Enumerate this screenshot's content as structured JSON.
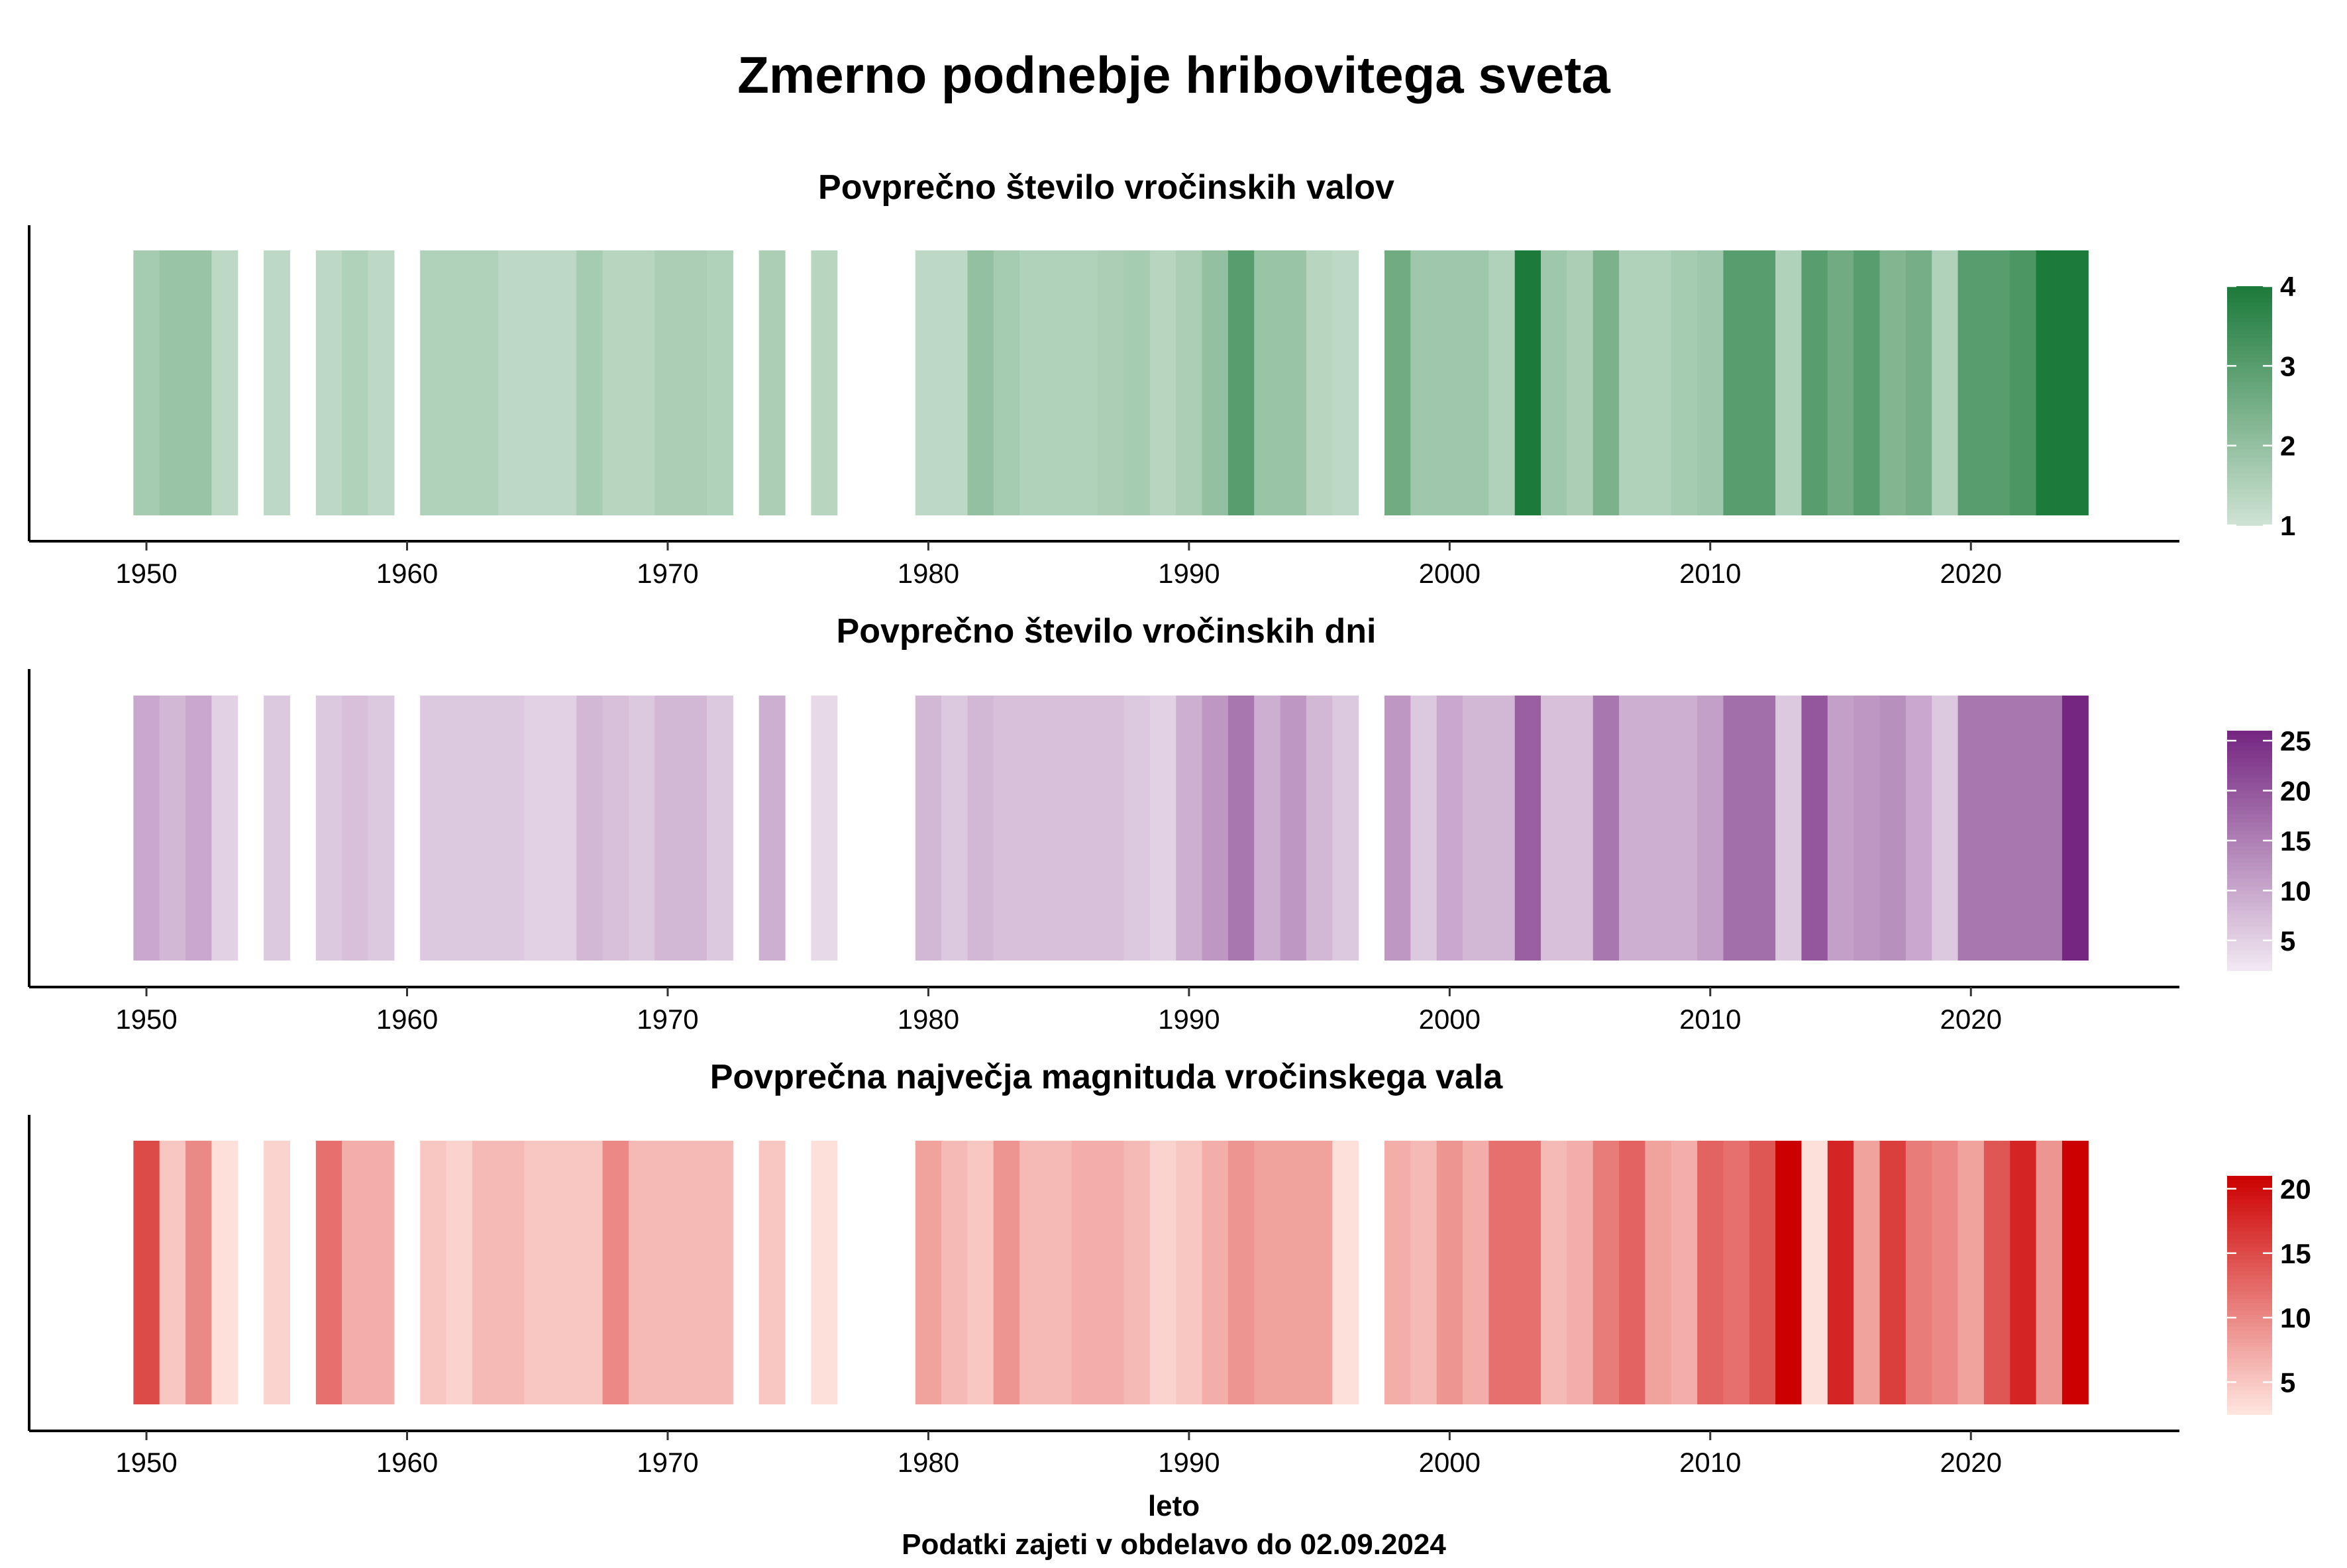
{
  "title": "Zmerno podnebje hribovitega sveta",
  "xlabel": "leto",
  "caption": "Podatki zajeti v obdelavo do 02.09.2024",
  "chart_data": [
    {
      "type": "heatmap",
      "title": "Povprečno število vročinskih valov",
      "xlabel": "leto",
      "xlim": [
        1945.5,
        2028
      ],
      "x_ticks": [
        "1950",
        "1960",
        "1970",
        "1980",
        "1990",
        "2000",
        "2010",
        "2020"
      ],
      "color_scale": {
        "min": 1,
        "max": 4,
        "low_color": "#cfe3d4",
        "high_color": "#1c7a3a"
      },
      "legend_ticks": [
        "1",
        "2",
        "3",
        "4"
      ],
      "legend_position": "right",
      "years": [
        1950,
        1951,
        1952,
        1953,
        1955,
        1957,
        1958,
        1959,
        1961,
        1962,
        1963,
        1964,
        1965,
        1966,
        1967,
        1968,
        1969,
        1970,
        1971,
        1972,
        1974,
        1976,
        1980,
        1981,
        1982,
        1983,
        1984,
        1985,
        1986,
        1987,
        1988,
        1989,
        1990,
        1991,
        1992,
        1993,
        1994,
        1995,
        1996,
        1998,
        1999,
        2000,
        2001,
        2002,
        2003,
        2004,
        2005,
        2006,
        2007,
        2008,
        2009,
        2010,
        2011,
        2012,
        2013,
        2014,
        2015,
        2016,
        2017,
        2018,
        2019,
        2020,
        2021,
        2022,
        2023,
        2024
      ],
      "values": [
        1.7,
        1.9,
        1.9,
        1.3,
        1.3,
        1.3,
        1.5,
        1.3,
        1.5,
        1.5,
        1.5,
        1.3,
        1.3,
        1.3,
        1.7,
        1.4,
        1.4,
        1.6,
        1.6,
        1.5,
        1.6,
        1.4,
        1.3,
        1.3,
        2.0,
        1.7,
        1.5,
        1.5,
        1.5,
        1.6,
        1.7,
        1.4,
        1.6,
        2.0,
        3.0,
        1.9,
        1.9,
        1.4,
        1.3,
        2.6,
        1.8,
        1.8,
        1.8,
        1.5,
        4.0,
        1.8,
        1.6,
        2.4,
        1.5,
        1.5,
        1.7,
        1.8,
        3.0,
        3.0,
        1.5,
        3.0,
        2.6,
        3.0,
        2.3,
        2.5,
        1.5,
        3.0,
        3.0,
        3.2,
        4.0,
        4.0
      ]
    },
    {
      "type": "heatmap",
      "title": "Povprečno število vročinskih dni",
      "xlabel": "leto",
      "xlim": [
        1945.5,
        2028
      ],
      "x_ticks": [
        "1950",
        "1960",
        "1970",
        "1980",
        "1990",
        "2000",
        "2010",
        "2020"
      ],
      "color_scale": {
        "min": 2,
        "max": 26,
        "low_color": "#f2e9f2",
        "high_color": "#742680"
      },
      "legend_ticks": [
        "5",
        "10",
        "15",
        "20",
        "25"
      ],
      "legend_position": "right",
      "years": [
        1950,
        1951,
        1952,
        1953,
        1955,
        1957,
        1958,
        1959,
        1961,
        1962,
        1963,
        1964,
        1965,
        1966,
        1967,
        1968,
        1969,
        1970,
        1971,
        1972,
        1974,
        1976,
        1980,
        1981,
        1982,
        1983,
        1984,
        1985,
        1986,
        1987,
        1988,
        1989,
        1990,
        1991,
        1992,
        1993,
        1994,
        1995,
        1996,
        1998,
        1999,
        2000,
        2001,
        2002,
        2003,
        2004,
        2005,
        2006,
        2007,
        2008,
        2009,
        2010,
        2011,
        2012,
        2013,
        2014,
        2015,
        2016,
        2017,
        2018,
        2019,
        2020,
        2021,
        2022,
        2023,
        2024
      ],
      "values": [
        10,
        8,
        10,
        5,
        6,
        6,
        7,
        6,
        6,
        6,
        6,
        6,
        5,
        5,
        8,
        7,
        6,
        8,
        8,
        6,
        9,
        4,
        8,
        6,
        8,
        7,
        7,
        7,
        7,
        7,
        6,
        5,
        9,
        12,
        16,
        9,
        12,
        8,
        6,
        12,
        6,
        10,
        8,
        8,
        19,
        7,
        7,
        16,
        9,
        9,
        9,
        11,
        17,
        17,
        6,
        20,
        11,
        12,
        13,
        10,
        6,
        16,
        16,
        16,
        16,
        26
      ]
    },
    {
      "type": "heatmap",
      "title": "Povprečna največja magnituda vročinskega vala",
      "xlabel": "leto",
      "xlim": [
        1945.5,
        2028
      ],
      "x_ticks": [
        "1950",
        "1960",
        "1970",
        "1980",
        "1990",
        "2000",
        "2010",
        "2020"
      ],
      "color_scale": {
        "min": 2.5,
        "max": 21,
        "low_color": "#ffe6e0",
        "high_color": "#cc0000"
      },
      "legend_ticks": [
        "5",
        "10",
        "15",
        "20"
      ],
      "legend_position": "right",
      "years": [
        1950,
        1951,
        1952,
        1953,
        1955,
        1957,
        1958,
        1959,
        1961,
        1962,
        1963,
        1964,
        1965,
        1966,
        1967,
        1968,
        1969,
        1970,
        1971,
        1972,
        1974,
        1976,
        1980,
        1981,
        1982,
        1983,
        1984,
        1985,
        1986,
        1987,
        1988,
        1989,
        1990,
        1991,
        1992,
        1993,
        1994,
        1995,
        1996,
        1998,
        1999,
        2000,
        2001,
        2002,
        2003,
        2004,
        2005,
        2006,
        2007,
        2008,
        2009,
        2010,
        2011,
        2012,
        2013,
        2014,
        2015,
        2016,
        2017,
        2018,
        2019,
        2020,
        2021,
        2022,
        2023,
        2024
      ],
      "values": [
        15,
        5,
        10,
        3,
        4,
        12,
        7,
        7,
        5,
        4,
        6,
        6,
        5,
        5,
        5,
        10,
        6,
        6,
        6,
        6,
        5,
        3,
        8,
        6,
        5,
        9,
        6,
        6,
        7,
        7,
        6,
        4,
        5,
        7,
        9,
        8,
        8,
        8,
        3,
        7,
        6,
        9,
        7,
        12,
        12,
        6,
        7,
        11,
        13,
        8,
        7,
        13,
        12,
        14,
        21,
        3,
        18,
        8,
        16,
        11,
        10,
        8,
        14,
        18,
        9,
        21
      ]
    }
  ]
}
